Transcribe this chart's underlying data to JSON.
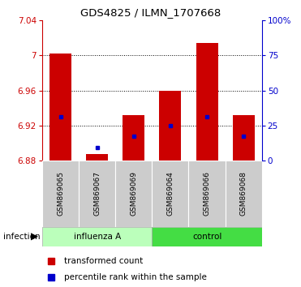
{
  "title": "GDS4825 / ILMN_1707668",
  "samples": [
    "GSM869065",
    "GSM869067",
    "GSM869069",
    "GSM869064",
    "GSM869066",
    "GSM869068"
  ],
  "ylim_left": [
    6.88,
    7.04
  ],
  "ylim_right": [
    0,
    100
  ],
  "yticks_left": [
    6.88,
    6.92,
    6.96,
    7.0,
    7.04
  ],
  "yticks_right": [
    0,
    25,
    50,
    75,
    100
  ],
  "ytick_labels_left": [
    "6.88",
    "6.92",
    "6.96",
    "7",
    "7.04"
  ],
  "ytick_labels_right": [
    "0",
    "25",
    "50",
    "75",
    "100%"
  ],
  "grid_vals": [
    6.92,
    6.96,
    7.0
  ],
  "red_top": [
    7.002,
    6.888,
    6.932,
    6.96,
    7.014,
    6.932
  ],
  "red_bottom": [
    6.88,
    6.88,
    6.88,
    6.88,
    6.88,
    6.88
  ],
  "blue_y": [
    6.93,
    6.895,
    6.908,
    6.92,
    6.93,
    6.908
  ],
  "bar_color": "#cc0000",
  "blue_color": "#0000cc",
  "axis_left_color": "#cc0000",
  "axis_right_color": "#0000cc",
  "influenza_color": "#bbffbb",
  "control_color": "#44dd44",
  "sample_bg_color": "#cccccc",
  "legend_red_label": "transformed count",
  "legend_blue_label": "percentile rank within the sample",
  "bar_width": 0.6
}
